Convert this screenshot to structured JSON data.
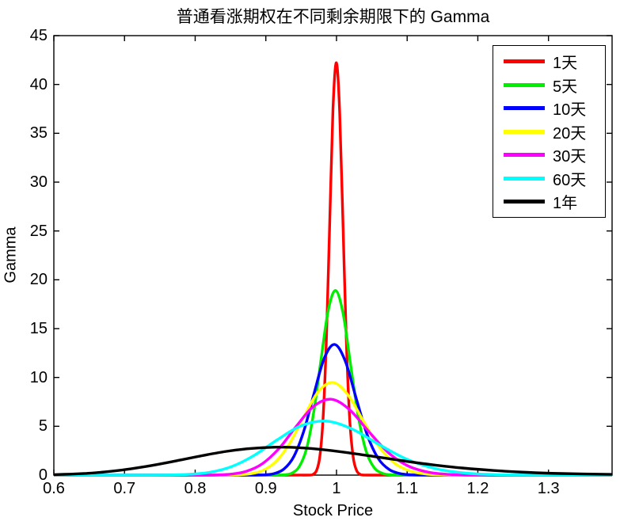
{
  "chart_data": {
    "type": "line",
    "title": "普通看涨期权在不同剩余期限下的 Gamma",
    "xlabel": "Stock Price",
    "ylabel": "Gamma",
    "xlim": [
      0.6,
      1.39
    ],
    "ylim": [
      0,
      45
    ],
    "xticks": {
      "values": [
        0.6,
        0.7,
        0.8,
        0.9,
        1.0,
        1.1,
        1.2,
        1.3
      ],
      "labels": [
        "0.6",
        "0.7",
        "0.8",
        "0.9",
        "1",
        "1.1",
        "1.2",
        "1.3"
      ]
    },
    "yticks": {
      "values": [
        0,
        5,
        10,
        15,
        20,
        25,
        30,
        35,
        40,
        45
      ],
      "labels": [
        "0",
        "5",
        "10",
        "15",
        "20",
        "25",
        "30",
        "35",
        "40",
        "45"
      ]
    },
    "grid": false,
    "axis_color": "#000000",
    "background": "#ffffff",
    "legend_position": "top-right",
    "series": [
      {
        "name": "1天",
        "color": "#ff0000",
        "peak": 42.2,
        "points": [
          [
            0.6,
            0
          ],
          [
            0.7,
            0
          ],
          [
            0.8,
            0
          ],
          [
            0.9,
            0
          ],
          [
            0.94,
            0
          ],
          [
            0.9627,
            0.01
          ],
          [
            0.9672,
            0.1
          ],
          [
            0.9718,
            0.48
          ],
          [
            0.9764,
            1.9
          ],
          [
            0.981,
            5.82
          ],
          [
            0.9857,
            13.91
          ],
          [
            0.9904,
            25.86
          ],
          [
            0.995,
            37.44
          ],
          [
            0.9998,
            42.23
          ],
          [
            1.0045,
            37.09
          ],
          [
            1.0093,
            25.37
          ],
          [
            1.014,
            13.52
          ],
          [
            1.0188,
            5.61
          ],
          [
            1.0237,
            1.81
          ],
          [
            1.0285,
            0.46
          ],
          [
            1.0334,
            0.09
          ],
          [
            1.0383,
            0.01
          ],
          [
            1.06,
            0
          ],
          [
            1.1,
            0
          ],
          [
            1.2,
            0
          ],
          [
            1.3,
            0
          ],
          [
            1.39,
            0
          ]
        ]
      },
      {
        "name": "5天",
        "color": "#00ee00",
        "peak": 18.9,
        "points": [
          [
            0.6,
            0
          ],
          [
            0.7,
            0
          ],
          [
            0.8,
            0
          ],
          [
            0.88,
            0
          ],
          [
            0.9178,
            0.01
          ],
          [
            0.9276,
            0.04
          ],
          [
            0.9374,
            0.22
          ],
          [
            0.9474,
            0.88
          ],
          [
            0.9575,
            2.67
          ],
          [
            0.9676,
            6.34
          ],
          [
            0.9779,
            11.71
          ],
          [
            0.9883,
            16.86
          ],
          [
            0.9988,
            18.9
          ],
          [
            1.0094,
            16.51
          ],
          [
            1.0201,
            11.23
          ],
          [
            1.031,
            5.95
          ],
          [
            1.0419,
            2.45
          ],
          [
            1.053,
            0.79
          ],
          [
            1.0642,
            0.2
          ],
          [
            1.0754,
            0.04
          ],
          [
            1.0869,
            0.01
          ],
          [
            1.12,
            0
          ],
          [
            1.2,
            0
          ],
          [
            1.3,
            0
          ],
          [
            1.39,
            0
          ]
        ]
      },
      {
        "name": "10天",
        "color": "#0000ff",
        "peak": 13.4,
        "points": [
          [
            0.6,
            0
          ],
          [
            0.7,
            0
          ],
          [
            0.8,
            0
          ],
          [
            0.8519,
            0
          ],
          [
            0.8852,
            0.01
          ],
          [
            0.8985,
            0.03
          ],
          [
            0.912,
            0.16
          ],
          [
            0.9258,
            0.63
          ],
          [
            0.9397,
            1.92
          ],
          [
            0.9539,
            4.54
          ],
          [
            0.9682,
            8.36
          ],
          [
            0.9828,
            11.99
          ],
          [
            0.9976,
            13.38
          ],
          [
            1.0126,
            11.64
          ],
          [
            1.0278,
            7.88
          ],
          [
            1.0433,
            4.16
          ],
          [
            1.059,
            1.71
          ],
          [
            1.075,
            0.55
          ],
          [
            1.0911,
            0.14
          ],
          [
            1.1076,
            0.03
          ],
          [
            1.1242,
            0.01
          ],
          [
            1.16,
            0
          ],
          [
            1.25,
            0
          ],
          [
            1.39,
            0
          ]
        ]
      },
      {
        "name": "20天",
        "color": "#ffff00",
        "peak": 9.5,
        "points": [
          [
            0.6,
            0
          ],
          [
            0.7,
            0
          ],
          [
            0.78,
            0
          ],
          [
            0.8404,
            0
          ],
          [
            0.8583,
            0.02
          ],
          [
            0.8767,
            0.12
          ],
          [
            0.8954,
            0.46
          ],
          [
            0.9145,
            1.4
          ],
          [
            0.934,
            3.28
          ],
          [
            0.954,
            6.0
          ],
          [
            0.9743,
            8.55
          ],
          [
            0.9951,
            9.49
          ],
          [
            1.0164,
            8.2
          ],
          [
            1.0381,
            5.52
          ],
          [
            1.0603,
            2.89
          ],
          [
            1.0829,
            1.18
          ],
          [
            1.106,
            0.38
          ],
          [
            1.1297,
            0.09
          ],
          [
            1.1538,
            0.02
          ],
          [
            1.1784,
            0
          ],
          [
            1.23,
            0
          ],
          [
            1.31,
            0
          ],
          [
            1.39,
            0
          ]
        ]
      },
      {
        "name": "30天",
        "color": "#ff00ff",
        "peak": 7.8,
        "points": [
          [
            0.6,
            0
          ],
          [
            0.7,
            0
          ],
          [
            0.76,
            0
          ],
          [
            0.8071,
            0
          ],
          [
            0.8283,
            0.02
          ],
          [
            0.85,
            0.1
          ],
          [
            0.8723,
            0.39
          ],
          [
            0.8951,
            1.17
          ],
          [
            0.9186,
            2.72
          ],
          [
            0.9427,
            4.96
          ],
          [
            0.9674,
            7.03
          ],
          [
            0.9927,
            7.77
          ],
          [
            1.0188,
            6.68
          ],
          [
            1.0455,
            4.47
          ],
          [
            1.0729,
            2.33
          ],
          [
            1.101,
            0.95
          ],
          [
            1.1299,
            0.3
          ],
          [
            1.1595,
            0.07
          ],
          [
            1.1899,
            0.01
          ],
          [
            1.2211,
            0
          ],
          [
            1.3,
            0
          ],
          [
            1.39,
            0
          ]
        ]
      },
      {
        "name": "60天",
        "color": "#00ffff",
        "peak": 5.5,
        "points": [
          [
            0.6,
            0
          ],
          [
            0.66,
            0
          ],
          [
            0.7086,
            0
          ],
          [
            0.7354,
            0
          ],
          [
            0.7628,
            0.02
          ],
          [
            0.7912,
            0.08
          ],
          [
            0.8207,
            0.29
          ],
          [
            0.8513,
            0.87
          ],
          [
            0.8831,
            2.0
          ],
          [
            0.916,
            3.61
          ],
          [
            0.9501,
            5.06
          ],
          [
            0.9855,
            5.53
          ],
          [
            1.0223,
            4.71
          ],
          [
            1.0604,
            3.12
          ],
          [
            1.0999,
            1.61
          ],
          [
            1.1409,
            0.65
          ],
          [
            1.1834,
            0.2
          ],
          [
            1.2275,
            0.05
          ],
          [
            1.2733,
            0.01
          ],
          [
            1.3208,
            0
          ],
          [
            1.39,
            0
          ]
        ]
      },
      {
        "name": "1年",
        "color": "#000000",
        "peak": 2.86,
        "points": [
          [
            0.6,
            0.05
          ],
          [
            0.6227,
            0.1
          ],
          [
            0.6465,
            0.18
          ],
          [
            0.6712,
            0.32
          ],
          [
            0.6968,
            0.52
          ],
          [
            0.7234,
            0.8
          ],
          [
            0.7511,
            1.15
          ],
          [
            0.7798,
            1.56
          ],
          [
            0.8096,
            1.99
          ],
          [
            0.8405,
            2.39
          ],
          [
            0.8726,
            2.69
          ],
          [
            0.906,
            2.85
          ],
          [
            0.9197,
            2.86
          ],
          [
            0.9406,
            2.83
          ],
          [
            0.9765,
            2.64
          ],
          [
            1.0138,
            2.32
          ],
          [
            1.0526,
            1.91
          ],
          [
            1.0928,
            1.48
          ],
          [
            1.1346,
            1.07
          ],
          [
            1.1779,
            0.73
          ],
          [
            1.2229,
            0.47
          ],
          [
            1.2697,
            0.28
          ],
          [
            1.3182,
            0.16
          ],
          [
            1.39,
            0.07
          ]
        ]
      }
    ]
  }
}
